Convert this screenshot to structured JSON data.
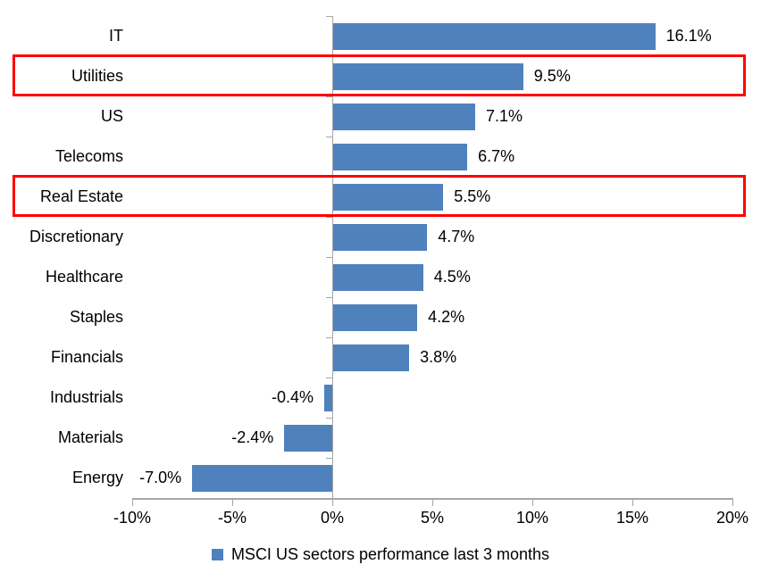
{
  "chart_data": {
    "type": "bar",
    "orientation": "horizontal",
    "title": "",
    "categories": [
      "IT",
      "Utilities",
      "US",
      "Telecoms",
      "Real Estate",
      "Discretionary",
      "Healthcare",
      "Staples",
      "Financials",
      "Industrials",
      "Materials",
      "Energy"
    ],
    "values": [
      16.1,
      9.5,
      7.1,
      6.7,
      5.5,
      4.7,
      4.5,
      4.2,
      3.8,
      -0.4,
      -2.4,
      -7.0
    ],
    "value_labels": [
      "16.1%",
      "9.5%",
      "7.1%",
      "6.7%",
      "5.5%",
      "4.7%",
      "4.5%",
      "4.2%",
      "3.8%",
      "-0.4%",
      "-2.4%",
      "-7.0%"
    ],
    "highlighted_categories": [
      "Utilities",
      "Real Estate"
    ],
    "xlim": [
      -10,
      20
    ],
    "x_ticks": [
      {
        "value": -10,
        "label": "-10%"
      },
      {
        "value": -5,
        "label": "-5%"
      },
      {
        "value": 0,
        "label": "0%"
      },
      {
        "value": 5,
        "label": "5%"
      },
      {
        "value": 10,
        "label": "10%"
      },
      {
        "value": 15,
        "label": "15%"
      },
      {
        "value": 20,
        "label": "20%"
      }
    ],
    "grid": false,
    "legend_position": "bottom-center",
    "legend": {
      "label": "MSCI US sectors performance last 3 months"
    },
    "colors": {
      "bar": "#4F81BD",
      "highlight_box": "#FF0000",
      "axis": "#A6A6A6",
      "text": "#000000",
      "background": "#FFFFFF"
    }
  }
}
